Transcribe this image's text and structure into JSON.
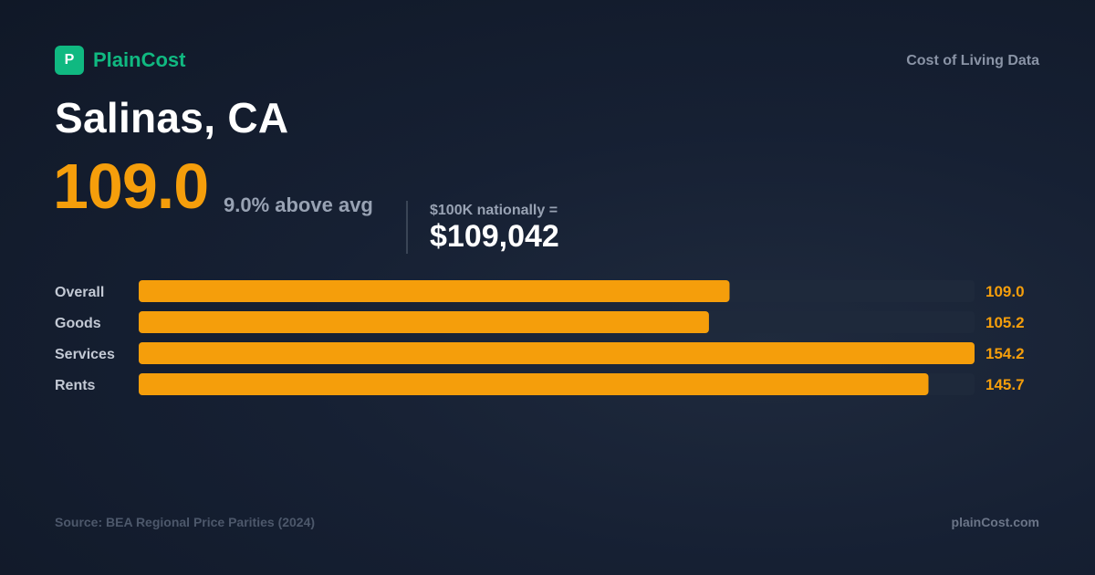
{
  "brand": {
    "logo_letter": "P",
    "name": "PlainCost",
    "tagline": "Cost of Living Data",
    "accent_color": "#10b981"
  },
  "headline": {
    "city": "Salinas, CA",
    "index_value": "109.0",
    "comparison": "9.0% above avg",
    "equivalent_label": "$100K nationally =",
    "equivalent_value": "$109,042"
  },
  "chart_data": {
    "type": "bar",
    "orientation": "horizontal",
    "categories": [
      "Overall",
      "Goods",
      "Services",
      "Rents"
    ],
    "values": [
      109.0,
      105.2,
      154.2,
      145.7
    ],
    "value_labels": [
      "109.0",
      "105.2",
      "154.2",
      "145.7"
    ],
    "xlim": [
      0,
      154.2
    ],
    "bar_color": "#f59e0b",
    "track_color": "#1e293b",
    "label_color": "#c3c9d4",
    "value_color": "#f59e0b",
    "grid": false
  },
  "footer": {
    "source": "Source: BEA Regional Price Parities (2024)",
    "site": "plainCost.com"
  }
}
